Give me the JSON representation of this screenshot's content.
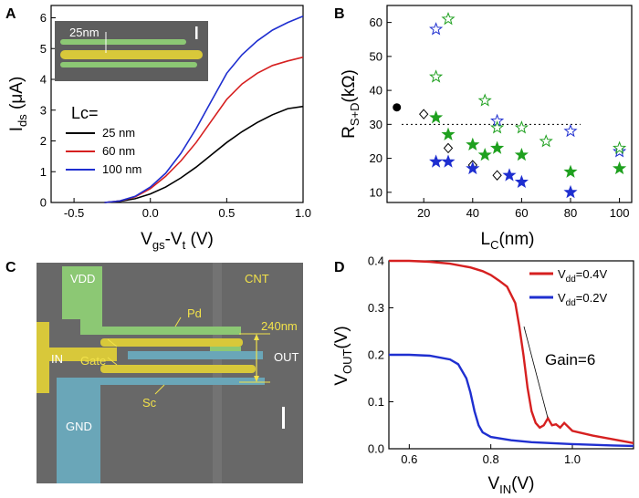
{
  "colors": {
    "black": "#000000",
    "red": "#d62020",
    "blue": "#1f2fd0",
    "green": "#1fa01f",
    "sem_bg": "#686868",
    "sem_green": "#8cc874",
    "sem_yellow": "#d8c83a",
    "sem_blue": "#6aa6b8",
    "sem_label": "#f2e24a"
  },
  "chart_data": [
    {
      "id": "A",
      "type": "line",
      "panel_label": "A",
      "xlabel": {
        "main": "V",
        "sub1": "gs",
        "mid": "-V",
        "sub2": "t",
        "unit": " (V)"
      },
      "ylabel": {
        "main": "I",
        "sub": "ds",
        "unit": " (μA)"
      },
      "xlim": [
        -0.65,
        1.0
      ],
      "ylim": [
        0,
        6.4
      ],
      "xticks": [
        -0.5,
        0.0,
        0.5,
        1.0
      ],
      "xtick_labels": [
        "-0.5",
        "0.0",
        "0.5",
        "1.0"
      ],
      "yticks": [
        0,
        1,
        2,
        3,
        4,
        5,
        6
      ],
      "ytick_labels": [
        "0",
        "1",
        "2",
        "3",
        "4",
        "5",
        "6"
      ],
      "legend_title": "Lc=",
      "legend_position": "middle-left",
      "inset": {
        "label": "25nm"
      },
      "series": [
        {
          "name": "25 nm",
          "color": "black",
          "x": [
            -0.3,
            -0.2,
            -0.1,
            0.0,
            0.1,
            0.2,
            0.3,
            0.4,
            0.5,
            0.6,
            0.7,
            0.8,
            0.9,
            1.0
          ],
          "y": [
            0.0,
            0.04,
            0.12,
            0.28,
            0.5,
            0.8,
            1.15,
            1.55,
            1.95,
            2.3,
            2.6,
            2.85,
            3.05,
            3.12
          ]
        },
        {
          "name": "60 nm",
          "color": "red",
          "x": [
            -0.3,
            -0.2,
            -0.1,
            0.0,
            0.1,
            0.2,
            0.3,
            0.4,
            0.5,
            0.6,
            0.7,
            0.8,
            0.9,
            1.0
          ],
          "y": [
            0.0,
            0.05,
            0.18,
            0.45,
            0.85,
            1.35,
            1.95,
            2.65,
            3.35,
            3.85,
            4.2,
            4.45,
            4.6,
            4.72
          ]
        },
        {
          "name": "100 nm",
          "color": "blue",
          "x": [
            -0.3,
            -0.2,
            -0.1,
            0.0,
            0.1,
            0.2,
            0.3,
            0.4,
            0.5,
            0.6,
            0.7,
            0.8,
            0.9,
            1.0
          ],
          "y": [
            0.0,
            0.05,
            0.2,
            0.5,
            0.95,
            1.6,
            2.4,
            3.3,
            4.2,
            4.8,
            5.25,
            5.6,
            5.85,
            6.05
          ]
        }
      ]
    },
    {
      "id": "B",
      "type": "scatter",
      "panel_label": "B",
      "xlabel": {
        "main": "L",
        "sub": "C",
        "unit": "(nm)"
      },
      "ylabel": {
        "main": "R",
        "sub": "S+D",
        "unit": "(kΩ)"
      },
      "xlim": [
        5,
        105
      ],
      "ylim": [
        7,
        65
      ],
      "xticks": [
        20,
        40,
        60,
        80,
        100
      ],
      "xtick_labels": [
        "20",
        "40",
        "60",
        "80",
        "100"
      ],
      "yticks": [
        10,
        20,
        30,
        40,
        50,
        60
      ],
      "ytick_labels": [
        "10",
        "20",
        "30",
        "40",
        "50",
        "60"
      ],
      "reference_line_y": 30,
      "series": [
        {
          "marker": "circle",
          "filled": true,
          "color": "black",
          "x": [
            9
          ],
          "y": [
            35
          ]
        },
        {
          "marker": "diamond",
          "filled": false,
          "color": "black",
          "x": [
            20,
            30,
            40,
            50
          ],
          "y": [
            33,
            23,
            18,
            15
          ]
        },
        {
          "marker": "star",
          "filled": false,
          "color": "blue",
          "x": [
            25,
            50,
            80,
            100
          ],
          "y": [
            58,
            31,
            28,
            22
          ]
        },
        {
          "marker": "star",
          "filled": false,
          "color": "green",
          "x": [
            25,
            30,
            45,
            50,
            60,
            70,
            100
          ],
          "y": [
            44,
            61,
            37,
            29,
            29,
            25,
            23
          ]
        },
        {
          "marker": "star",
          "filled": true,
          "color": "green",
          "x": [
            25,
            30,
            40,
            45,
            50,
            60,
            80,
            100
          ],
          "y": [
            32,
            27,
            24,
            21,
            23,
            21,
            16,
            17
          ]
        },
        {
          "marker": "star",
          "filled": true,
          "color": "blue",
          "x": [
            25,
            30,
            40,
            55,
            60,
            80
          ],
          "y": [
            19,
            19,
            17,
            15,
            13,
            10
          ]
        }
      ]
    },
    {
      "id": "D",
      "type": "line",
      "panel_label": "D",
      "xlabel": {
        "main": "V",
        "sub": "IN",
        "unit": "(V)"
      },
      "ylabel": {
        "main": "V",
        "sub": "OUT",
        "unit": "(V)"
      },
      "xlim": [
        0.55,
        1.15
      ],
      "ylim": [
        0,
        0.4
      ],
      "xticks": [
        0.6,
        0.8,
        1.0
      ],
      "xtick_labels": [
        "0.6",
        "0.8",
        "1.0"
      ],
      "yticks": [
        0.0,
        0.1,
        0.2,
        0.3,
        0.4
      ],
      "ytick_labels": [
        "0.0",
        "0.1",
        "0.2",
        "0.3",
        "0.4"
      ],
      "annotation": "Gain=6",
      "legend_position": "top-right",
      "series": [
        {
          "label_main": "V",
          "label_sub": "dd",
          "label_val": "=0.4V",
          "color": "red",
          "x": [
            0.55,
            0.6,
            0.65,
            0.7,
            0.75,
            0.78,
            0.8,
            0.82,
            0.84,
            0.86,
            0.87,
            0.88,
            0.89,
            0.9,
            0.91,
            0.92,
            0.93,
            0.94,
            0.95,
            0.96,
            0.97,
            0.98,
            1.0,
            1.05,
            1.1,
            1.15
          ],
          "y": [
            0.4,
            0.4,
            0.398,
            0.394,
            0.386,
            0.378,
            0.37,
            0.358,
            0.345,
            0.31,
            0.26,
            0.2,
            0.13,
            0.08,
            0.055,
            0.045,
            0.05,
            0.065,
            0.05,
            0.052,
            0.045,
            0.055,
            0.038,
            0.028,
            0.02,
            0.012
          ]
        },
        {
          "label_main": "V",
          "label_sub": "dd",
          "label_val": "=0.2V",
          "color": "blue",
          "x": [
            0.55,
            0.6,
            0.65,
            0.7,
            0.72,
            0.74,
            0.75,
            0.76,
            0.77,
            0.78,
            0.8,
            0.85,
            0.9,
            1.0,
            1.1,
            1.15
          ],
          "y": [
            0.2,
            0.2,
            0.198,
            0.19,
            0.18,
            0.15,
            0.12,
            0.08,
            0.05,
            0.035,
            0.025,
            0.018,
            0.014,
            0.01,
            0.007,
            0.006
          ]
        }
      ]
    }
  ],
  "sem": {
    "panel_label": "C",
    "labels": {
      "vdd": "VDD",
      "cnt": "CNT",
      "pd": "Pd",
      "dim": "240nm",
      "in": "IN",
      "gate": "Gate",
      "out": "OUT",
      "sc": "Sc",
      "gnd": "GND"
    }
  }
}
